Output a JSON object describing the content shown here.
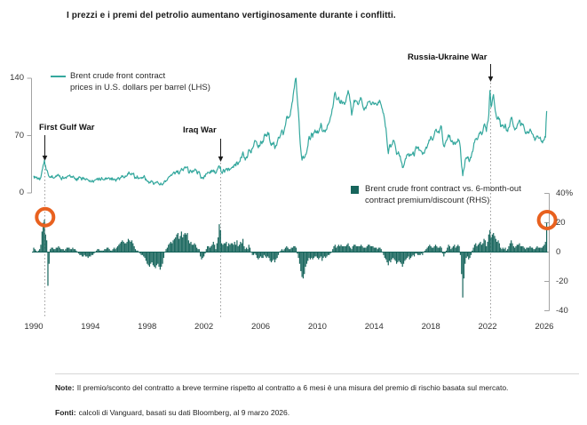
{
  "title": "I prezzi e i premi del petrolio aumentano vertiginosamente durante i conflitti.",
  "legend_line": {
    "line1": "Brent crude front contract",
    "line2": "prices in U.S. dollars per barrel (LHS)"
  },
  "legend_bar": {
    "line1": "Brent crude front contract vs. 6-month-out",
    "line2": "contract premium/discount (RHS)"
  },
  "annotations": {
    "first_gulf_war": "First Gulf War",
    "iraq_war": "Iraq War",
    "russia_ukraine_war": "Russia-Ukraine War"
  },
  "colors": {
    "line": "#35a89e",
    "bar": "#17655c",
    "highlight": "#e8611f",
    "axis": "#a3a3a3",
    "dotted": "#9b9b9b",
    "arrow": "#1a1a1a"
  },
  "footer": {
    "note_label": "Note:",
    "note_text": "Il premio/sconto del contratto a breve termine rispetto al contratto a 6 mesi è una misura del premio di rischio basata sul mercato.",
    "sources_label": "Fonti:",
    "sources_text": "calcoli di Vanguard, basati su dati Bloomberg, al 9 marzo 2026."
  },
  "chart_data": {
    "type": "line+bar",
    "title": "I prezzi e i premi del petrolio aumentano vertiginosamente durante i conflitti.",
    "frequency": "monthly",
    "start_year": 1990,
    "end_year": 2026.17,
    "x_ticks": [
      "1990",
      "1994",
      "1998",
      "2002",
      "2006",
      "2010",
      "2014",
      "2018",
      "2022",
      "2026"
    ],
    "lhs_axis": {
      "label": "U.S. dollars per barrel",
      "range": [
        0,
        140
      ],
      "ticks": [
        {
          "v": 140,
          "label": "140"
        },
        {
          "v": 70,
          "label": "70"
        },
        {
          "v": 0,
          "label": "0"
        }
      ]
    },
    "rhs_axis": {
      "label": "premium/discount %",
      "range": [
        -40,
        40
      ],
      "ticks": [
        {
          "v": 40,
          "label": "40%"
        },
        {
          "v": 20,
          "label": "20"
        },
        {
          "v": 0,
          "label": "0"
        },
        {
          "v": -20,
          "label": "-20"
        },
        {
          "v": -40,
          "label": "-40"
        }
      ]
    },
    "events": [
      {
        "label": "First Gulf War",
        "year": 1990.78
      },
      {
        "label": "Iraq War",
        "year": 2003.18
      },
      {
        "label": "Russia-Ukraine War",
        "year": 2022.17
      }
    ],
    "highlights": [
      {
        "series": "premium",
        "year": 1990.8,
        "value": 22
      },
      {
        "series": "premium",
        "year": 2026.2,
        "value": 20
      }
    ],
    "series": [
      {
        "name": "Brent crude front contract prices in U.S. dollars per barrel (LHS)",
        "type": "line",
        "axis": "LHS",
        "values": [
          21,
          20,
          19,
          17,
          17,
          16,
          19,
          27,
          34,
          40,
          33,
          28,
          24,
          20,
          19,
          19,
          19,
          18,
          19,
          20,
          21,
          22,
          21,
          18,
          18,
          18,
          18,
          19,
          20,
          21,
          21,
          20,
          20,
          20,
          19,
          18,
          17,
          18,
          19,
          19,
          18,
          18,
          17,
          17,
          16,
          17,
          16,
          14,
          14,
          14,
          14,
          15,
          16,
          17,
          18,
          17,
          16,
          17,
          17,
          16,
          16,
          17,
          17,
          18,
          18,
          17,
          16,
          16,
          17,
          16,
          17,
          18,
          18,
          18,
          19,
          20,
          19,
          19,
          20,
          21,
          23,
          24,
          23,
          24,
          23,
          21,
          19,
          18,
          19,
          18,
          18,
          19,
          19,
          20,
          19,
          17,
          15,
          14,
          13,
          14,
          14,
          12,
          12,
          12,
          13,
          13,
          11,
          10,
          11,
          10,
          12,
          15,
          15,
          16,
          19,
          20,
          22,
          22,
          24,
          25,
          25,
          27,
          27,
          23,
          27,
          30,
          28,
          30,
          32,
          31,
          32,
          25,
          26,
          27,
          25,
          26,
          28,
          28,
          25,
          26,
          26,
          21,
          19,
          19,
          19,
          20,
          23,
          25,
          25,
          24,
          25,
          26,
          28,
          27,
          24,
          28,
          31,
          33,
          31,
          25,
          26,
          27,
          28,
          30,
          27,
          30,
          29,
          30,
          31,
          31,
          34,
          33,
          38,
          35,
          38,
          43,
          43,
          50,
          43,
          40,
          44,
          45,
          53,
          52,
          49,
          54,
          57,
          64,
          63,
          59,
          55,
          57,
          63,
          60,
          62,
          70,
          70,
          69,
          74,
          73,
          62,
          58,
          59,
          62,
          54,
          58,
          62,
          68,
          67,
          71,
          77,
          71,
          77,
          83,
          93,
          91,
          92,
          95,
          104,
          112,
          125,
          135,
          140,
          115,
          98,
          72,
          52,
          40,
          45,
          43,
          47,
          50,
          58,
          69,
          65,
          73,
          68,
          73,
          77,
          75,
          76,
          74,
          79,
          85,
          76,
          75,
          76,
          77,
          78,
          83,
          86,
          92,
          97,
          104,
          115,
          123,
          115,
          114,
          117,
          110,
          113,
          109,
          111,
          108,
          111,
          119,
          125,
          120,
          110,
          95,
          103,
          113,
          113,
          112,
          109,
          109,
          113,
          116,
          109,
          103,
          103,
          103,
          107,
          111,
          112,
          109,
          108,
          111,
          108,
          109,
          108,
          108,
          110,
          112,
          107,
          102,
          97,
          88,
          79,
          62,
          48,
          58,
          56,
          59,
          64,
          63,
          57,
          47,
          48,
          48,
          45,
          38,
          31,
          33,
          39,
          42,
          47,
          48,
          45,
          46,
          47,
          50,
          45,
          54,
          55,
          56,
          52,
          52,
          51,
          47,
          49,
          52,
          56,
          57,
          61,
          64,
          69,
          65,
          66,
          72,
          77,
          75,
          74,
          73,
          79,
          81,
          65,
          57,
          60,
          64,
          66,
          71,
          70,
          63,
          64,
          59,
          62,
          60,
          62,
          66,
          64,
          55,
          33,
          21,
          29,
          40,
          43,
          44,
          41,
          40,
          43,
          50,
          55,
          62,
          66,
          65,
          68,
          73,
          75,
          71,
          75,
          83,
          81,
          75,
          86,
          95,
          125,
          105,
          113,
          120,
          107,
          97,
          90,
          93,
          91,
          81,
          83,
          83,
          79,
          84,
          76,
          75,
          80,
          85,
          92,
          88,
          81,
          77,
          79,
          82,
          85,
          89,
          82,
          85,
          84,
          79,
          73,
          74,
          73,
          73,
          78,
          75,
          72,
          68,
          64,
          67,
          69,
          67,
          67,
          65,
          63,
          64,
          65,
          68,
          100
        ]
      },
      {
        "name": "Brent crude front contract vs. 6-month-out contract premium/discount (RHS)",
        "type": "bar",
        "axis": "RHS",
        "values": [
          3,
          2,
          1,
          0,
          1,
          2,
          5,
          14,
          20,
          22,
          12,
          8,
          -23,
          -8,
          2,
          3,
          3,
          2,
          2,
          3,
          3,
          4,
          3,
          2,
          2,
          2,
          1,
          2,
          3,
          3,
          3,
          2,
          2,
          3,
          2,
          2,
          1,
          0,
          -1,
          -2,
          -2,
          -3,
          -3,
          -2,
          -3,
          -3,
          -4,
          -3,
          -3,
          -2,
          -2,
          -1,
          0,
          1,
          2,
          2,
          1,
          1,
          1,
          1,
          2,
          2,
          3,
          3,
          2,
          1,
          1,
          2,
          3,
          2,
          3,
          4,
          5,
          6,
          7,
          8,
          7,
          6,
          6,
          7,
          9,
          8,
          7,
          8,
          6,
          4,
          2,
          1,
          1,
          0,
          -1,
          -2,
          -2,
          -3,
          -4,
          -6,
          -8,
          -9,
          -10,
          -8,
          -7,
          -9,
          -10,
          -11,
          -9,
          -8,
          -10,
          -12,
          -10,
          -8,
          -4,
          0,
          2,
          3,
          5,
          6,
          7,
          6,
          8,
          9,
          10,
          12,
          13,
          9,
          11,
          14,
          10,
          12,
          13,
          12,
          13,
          8,
          6,
          7,
          5,
          5,
          6,
          5,
          3,
          2,
          2,
          -3,
          -5,
          -4,
          -3,
          -1,
          2,
          4,
          4,
          3,
          4,
          5,
          7,
          5,
          2,
          6,
          10,
          19,
          15,
          6,
          5,
          6,
          6,
          7,
          4,
          6,
          5,
          6,
          6,
          5,
          7,
          5,
          8,
          4,
          5,
          7,
          6,
          9,
          4,
          2,
          3,
          2,
          5,
          3,
          0,
          -2,
          -2,
          -1,
          -2,
          -4,
          -5,
          -4,
          -3,
          -4,
          -4,
          -2,
          -3,
          -4,
          -3,
          -4,
          -6,
          -7,
          -6,
          -5,
          -7,
          -5,
          -4,
          -2,
          0,
          1,
          2,
          1,
          2,
          3,
          4,
          3,
          2,
          2,
          3,
          3,
          4,
          4,
          3,
          -1,
          -4,
          -8,
          -13,
          -17,
          -18,
          -15,
          -10,
          -8,
          -6,
          -4,
          -5,
          -4,
          -5,
          -4,
          -3,
          -3,
          -4,
          -5,
          -4,
          -3,
          -6,
          -4,
          -3,
          -4,
          -3,
          -2,
          -2,
          -1,
          0,
          2,
          4,
          5,
          3,
          4,
          5,
          4,
          5,
          4,
          4,
          4,
          4,
          5,
          6,
          4,
          3,
          2,
          4,
          5,
          5,
          4,
          4,
          4,
          4,
          5,
          4,
          3,
          3,
          3,
          4,
          5,
          5,
          4,
          4,
          4,
          3,
          3,
          3,
          2,
          3,
          3,
          2,
          0,
          -2,
          -4,
          -5,
          -7,
          -9,
          -6,
          -7,
          -5,
          -4,
          -5,
          -6,
          -8,
          -7,
          -6,
          -7,
          -8,
          -10,
          -8,
          -6,
          -5,
          -4,
          -3,
          -5,
          -4,
          -3,
          -2,
          -3,
          -1,
          -1,
          -2,
          -2,
          -2,
          -1,
          -2,
          0,
          1,
          2,
          3,
          4,
          5,
          4,
          3,
          3,
          4,
          5,
          4,
          3,
          3,
          4,
          3,
          -1,
          -3,
          -1,
          1,
          3,
          5,
          4,
          2,
          3,
          4,
          5,
          3,
          4,
          5,
          4,
          -2,
          -15,
          -31,
          -18,
          -8,
          -4,
          -3,
          -5,
          -4,
          -2,
          1,
          3,
          5,
          6,
          4,
          5,
          6,
          7,
          5,
          6,
          9,
          8,
          4,
          7,
          12,
          15,
          10,
          12,
          13,
          11,
          9,
          7,
          8,
          6,
          3,
          2,
          3,
          2,
          3,
          1,
          2,
          4,
          6,
          8,
          6,
          4,
          3,
          4,
          5,
          5,
          6,
          4,
          4,
          4,
          3,
          2,
          3,
          3,
          3,
          4,
          3,
          3,
          2,
          2,
          3,
          4,
          3,
          3,
          3,
          3,
          4,
          5,
          7,
          20
        ]
      }
    ]
  }
}
